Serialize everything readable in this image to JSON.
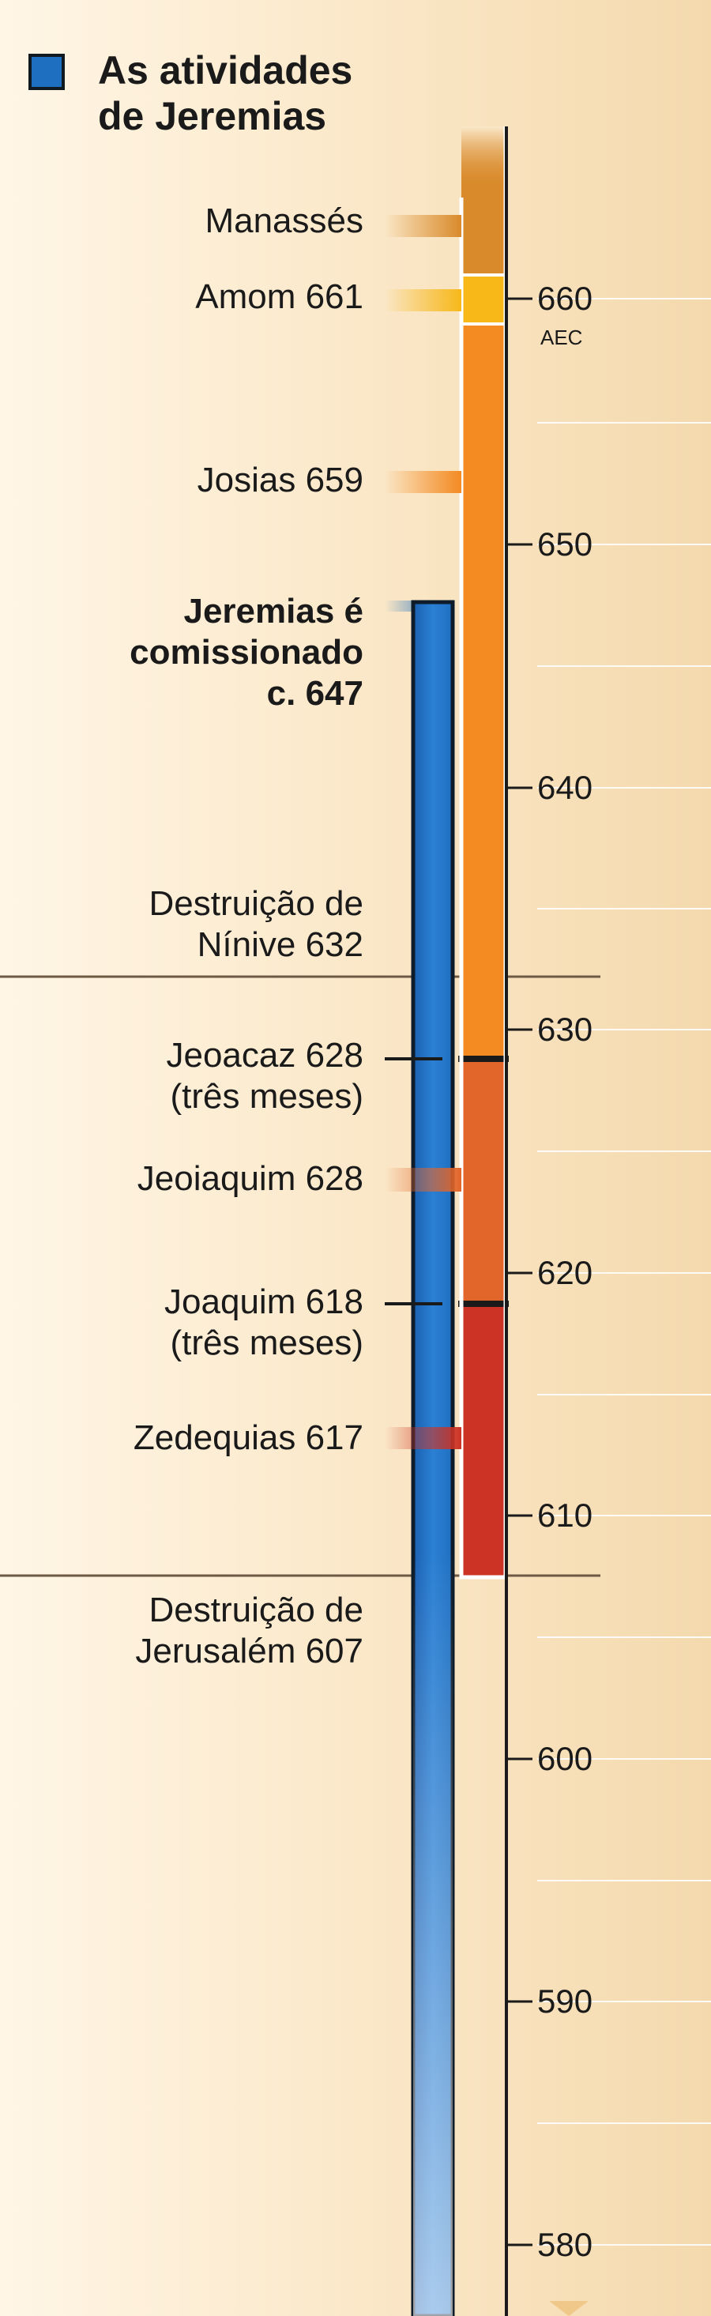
{
  "legend": {
    "title_line1": "As atividades",
    "title_line2": "de Jeremias",
    "swatch_color": "#1f6fc0"
  },
  "axis": {
    "era": "AEC",
    "years": [
      "660",
      "650",
      "640",
      "630",
      "620",
      "610",
      "600",
      "590",
      "580"
    ]
  },
  "reigns": [
    {
      "name": "Manassés",
      "color": "#d98a2a"
    },
    {
      "name": "Amom",
      "start": 661,
      "color": "#f7b818"
    },
    {
      "name": "Josias",
      "start": 659,
      "color": "#f48a22"
    },
    {
      "name": "Jeoacaz",
      "start": 628,
      "color": "#e2652a"
    },
    {
      "name": "Jeoiaquim",
      "start": 628,
      "color": "#e2652a"
    },
    {
      "name": "Joaquim",
      "start": 618,
      "color": "#cc3325"
    },
    {
      "name": "Zedequias",
      "start": 617,
      "color": "#cc3325"
    }
  ],
  "events": {
    "manasses": "Manassés",
    "amom": "Amom 661",
    "josias": "Josias 659",
    "jeremias_l1": "Jeremias é",
    "jeremias_l2": "comissionado",
    "jeremias_l3": "c. 647",
    "ninive_l1": "Destruição de",
    "ninive_l2": "Nínive 632",
    "jeoacaz_l1": "Jeoacaz 628",
    "jeoacaz_l2": "(três meses)",
    "jeoiaquim": "Jeoiaquim 628",
    "joaquim_l1": "Joaquim 618",
    "joaquim_l2": "(três meses)",
    "zedequias": "Zedequias 617",
    "jerusalem_l1": "Destruição de",
    "jerusalem_l2": "Jerusalém 607"
  }
}
